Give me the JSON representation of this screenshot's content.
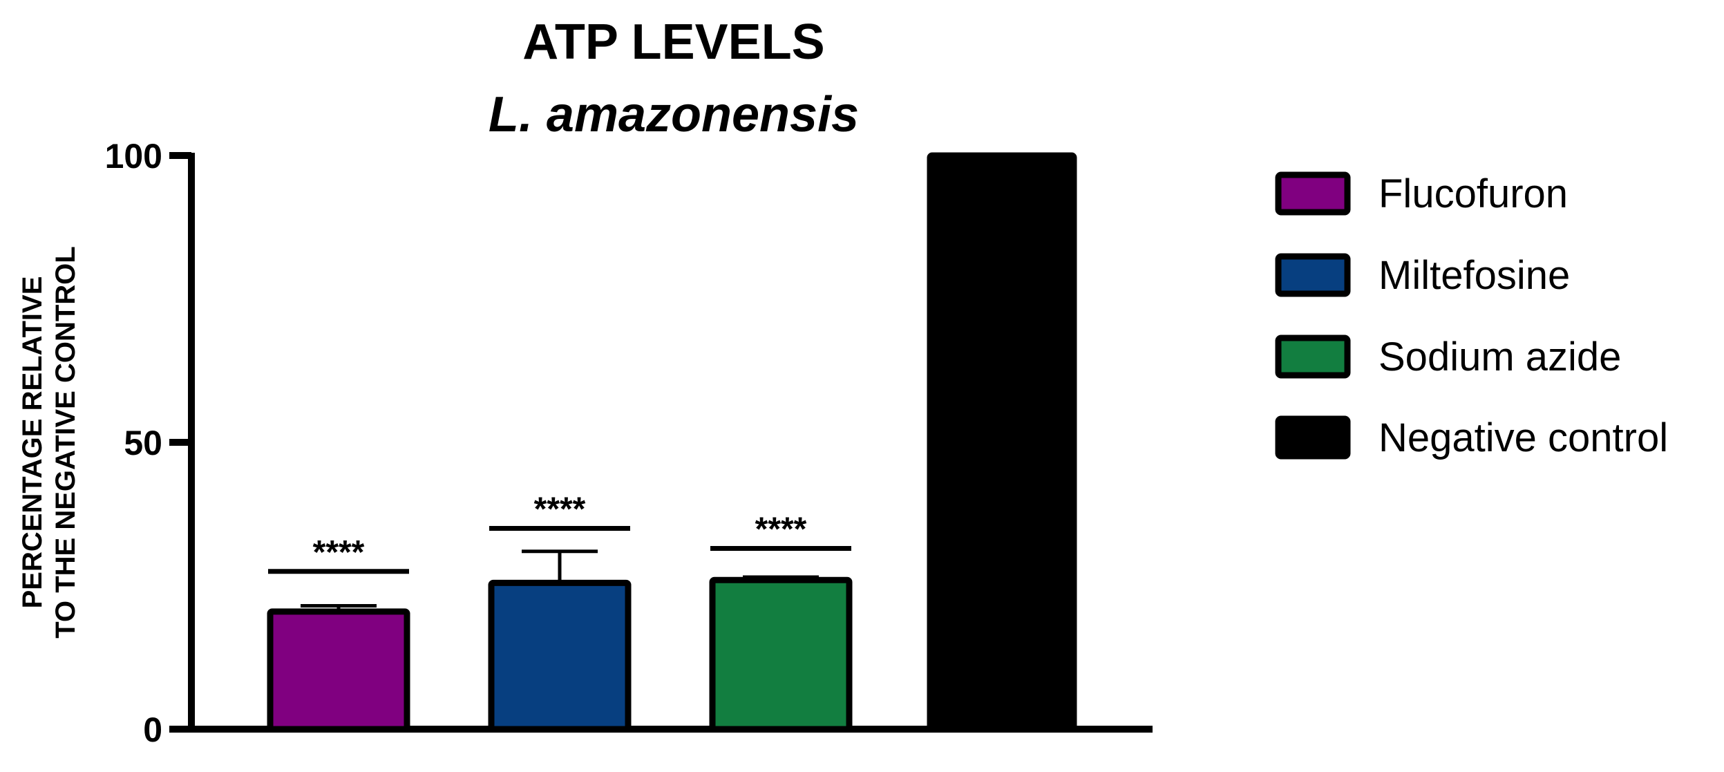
{
  "chart_data": {
    "type": "bar",
    "title": "ATP LEVELS",
    "subtitle": "L. amazonensis",
    "ylabel_line1": "PERCENTAGE RELATIVE",
    "ylabel_line2": "TO THE NEGATIVE CONTROL",
    "ylim": [
      0,
      100
    ],
    "yticks": [
      0,
      50,
      100
    ],
    "yticks_labels": [
      "0",
      "50",
      "100"
    ],
    "grid": false,
    "legend_position": "right",
    "series": [
      {
        "name": "Flucofuron",
        "value": 20.5,
        "err_low": 1.0,
        "err_high": 1.0,
        "color": "#800080",
        "significance": "****",
        "sig_line": 27.5
      },
      {
        "name": "Miltefosine",
        "value": 25.5,
        "err_low": 5.0,
        "err_high": 5.5,
        "color": "#073F80",
        "significance": "****",
        "sig_line": 35.0
      },
      {
        "name": "Sodium azide",
        "value": 26.0,
        "err_low": 0.5,
        "err_high": 0.5,
        "color": "#127E40",
        "significance": "****",
        "sig_line": 31.5
      },
      {
        "name": "Negative control",
        "value": 100,
        "err_low": 0,
        "err_high": 0,
        "color": "#000000",
        "significance": "",
        "sig_line": null
      }
    ]
  }
}
